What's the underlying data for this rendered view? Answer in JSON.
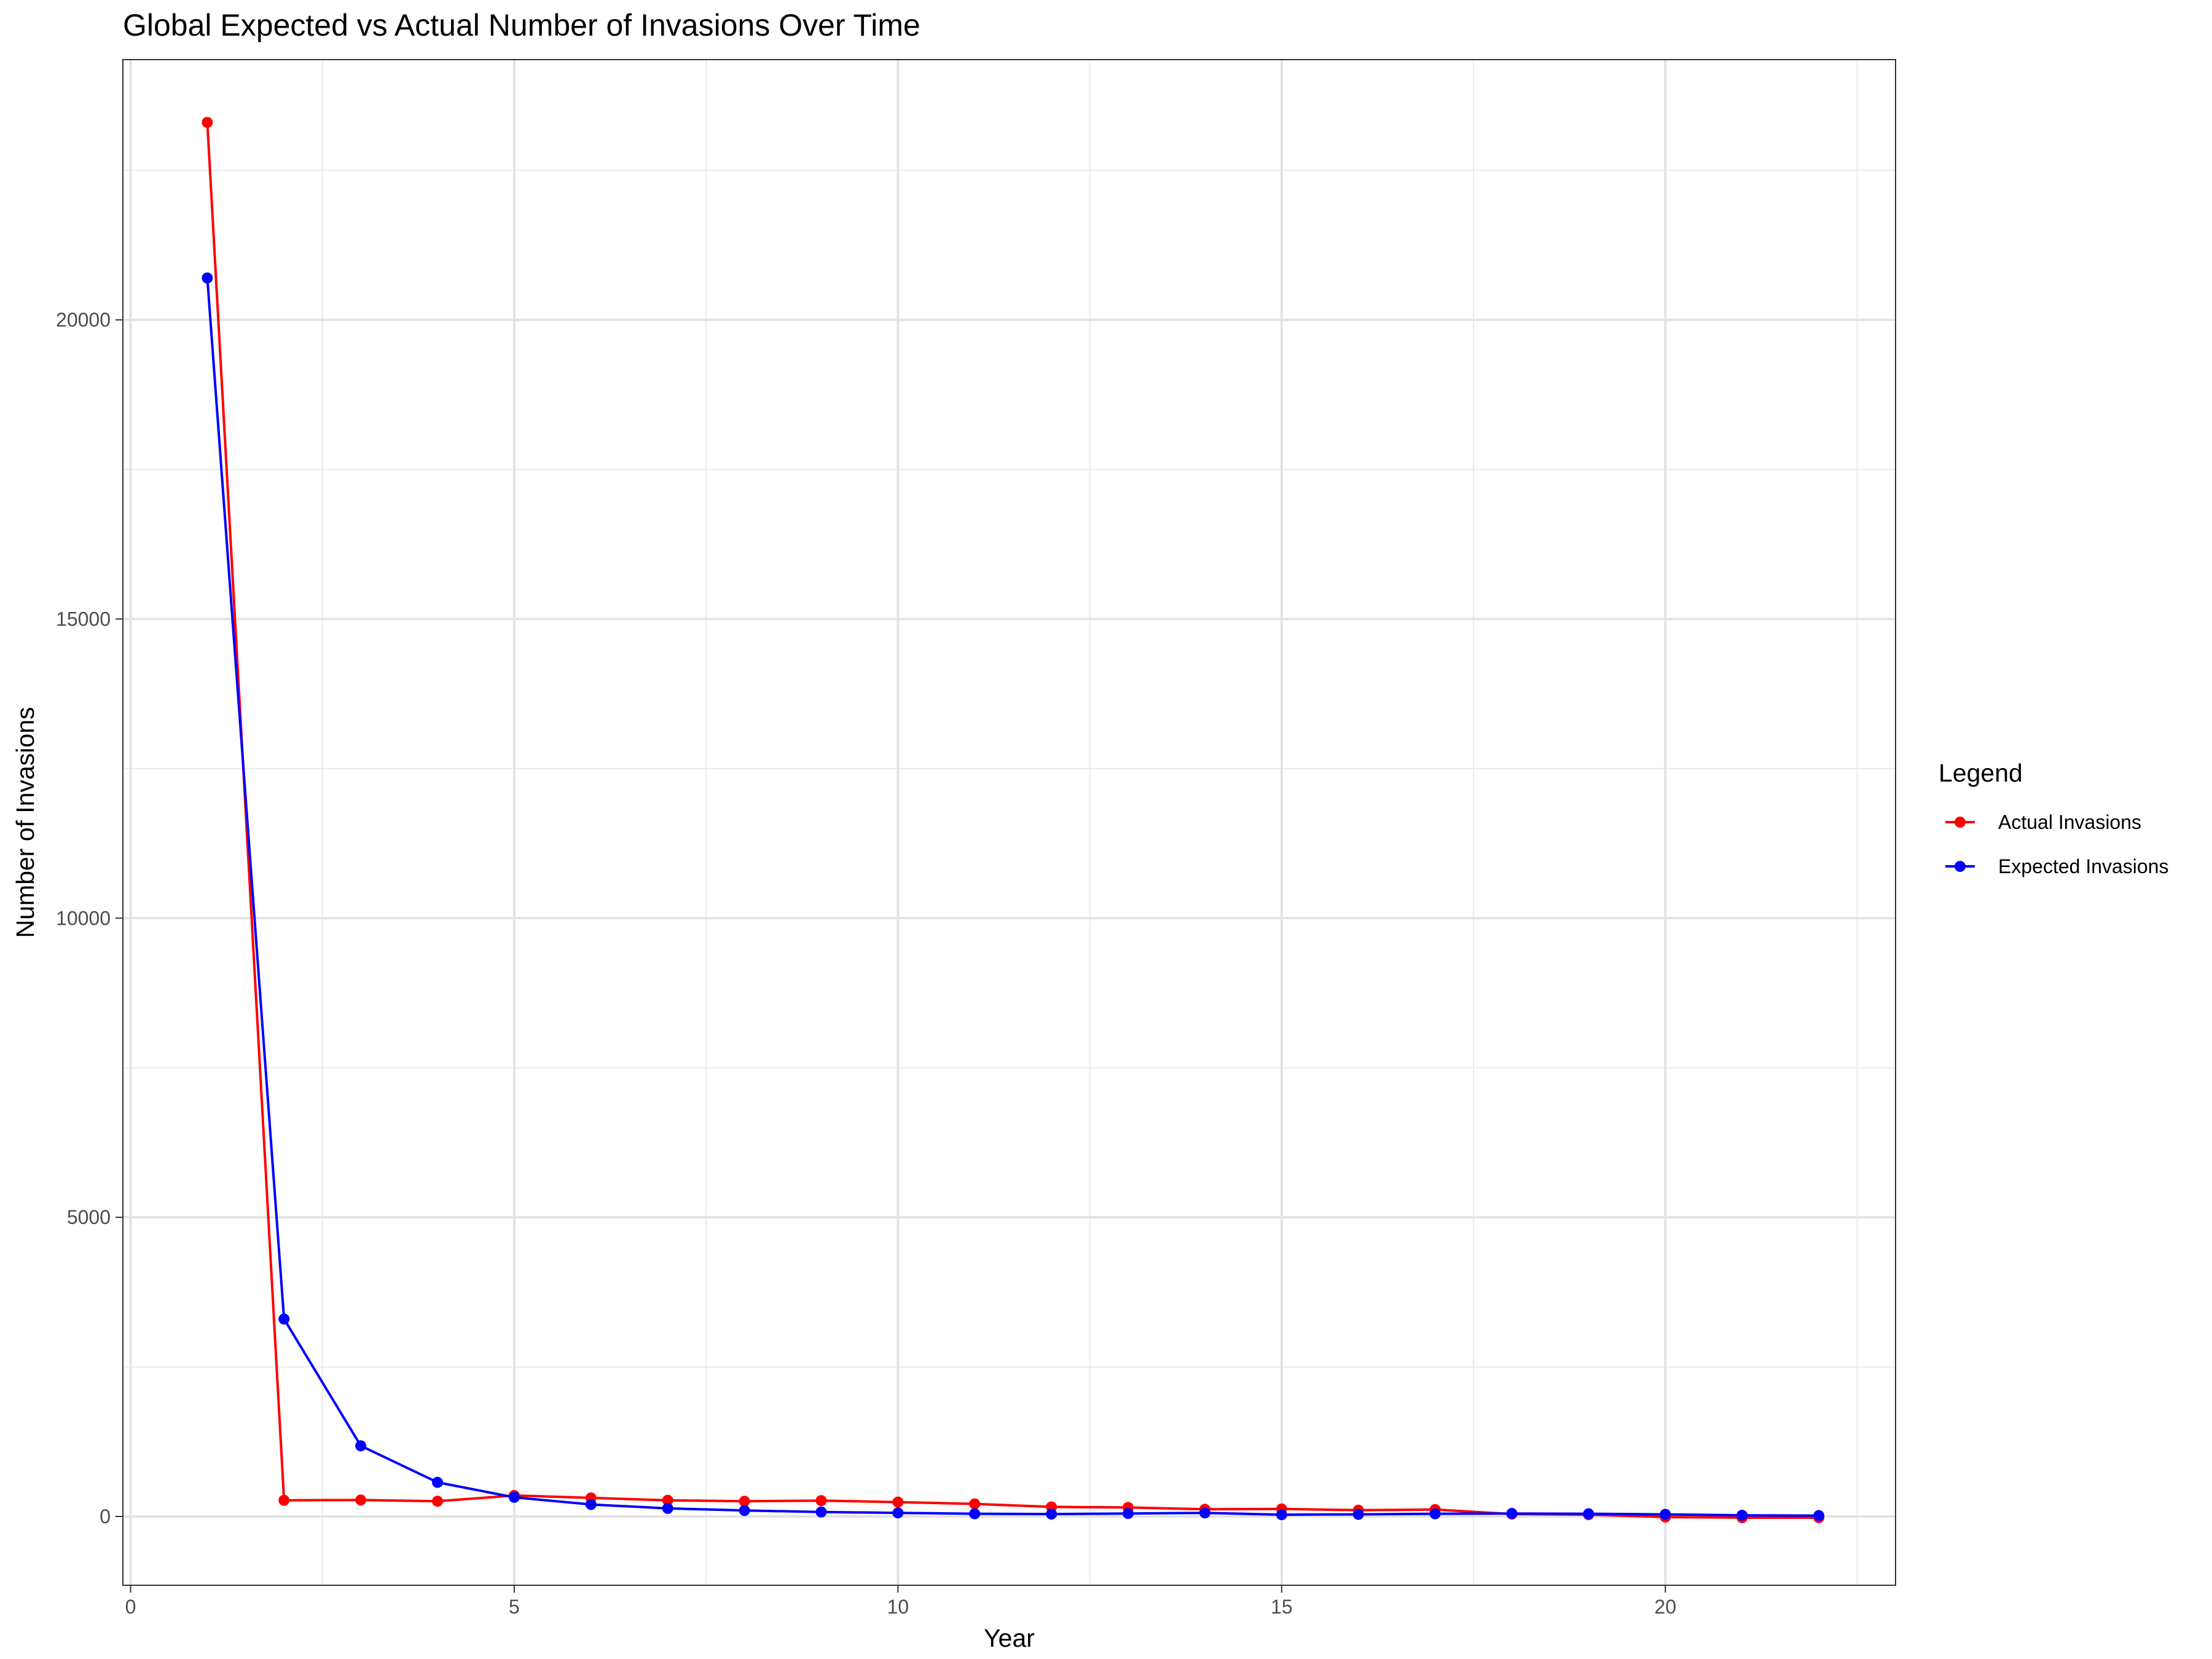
{
  "chart_data": {
    "type": "line",
    "title": "Global Expected vs Actual Number of Invasions Over Time",
    "xlabel": "Year",
    "ylabel": "Number of Invasions",
    "xlim": [
      -0.1,
      23.0
    ],
    "ylim": [
      -1150,
      24350
    ],
    "x_ticks": [
      0,
      5,
      10,
      15,
      20
    ],
    "y_ticks": [
      0,
      5000,
      10000,
      15000,
      20000
    ],
    "grid": true,
    "legend": {
      "title": "Legend",
      "position": "right"
    },
    "x": [
      1,
      2,
      3,
      4,
      5,
      6,
      7,
      8,
      9,
      10,
      11,
      12,
      13,
      14,
      15,
      16,
      17,
      18,
      19,
      20,
      21,
      22
    ],
    "series": [
      {
        "name": "Actual Invasions",
        "color": "#ff0000",
        "values": [
          23300,
          270,
          275,
          255,
          350,
          310,
          270,
          255,
          265,
          240,
          210,
          160,
          150,
          120,
          125,
          105,
          115,
          40,
          30,
          -10,
          -20,
          -20
        ]
      },
      {
        "name": "Expected Invasions",
        "color": "#0000ff",
        "values": [
          20700,
          3300,
          1180,
          570,
          320,
          200,
          135,
          100,
          75,
          60,
          45,
          40,
          50,
          60,
          30,
          35,
          45,
          50,
          45,
          35,
          20,
          15
        ]
      }
    ]
  }
}
